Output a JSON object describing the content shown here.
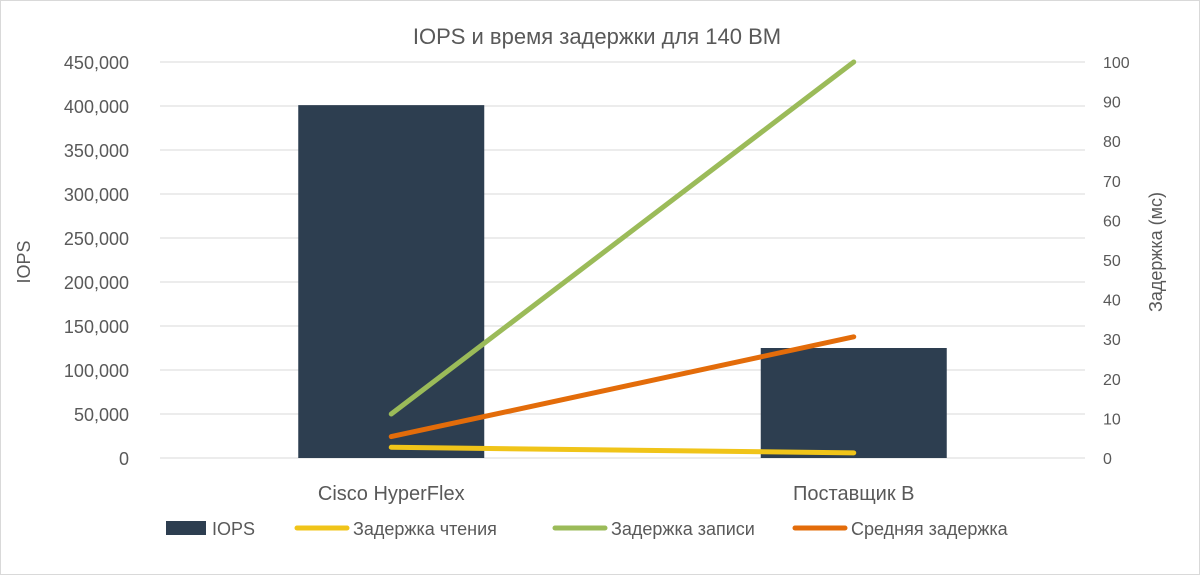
{
  "chart_data": {
    "type": "bar",
    "title": "IOPS и время задержки для 140 ВМ",
    "categories": [
      "Cisco HyperFlex",
      "Поставщик B"
    ],
    "y_left": {
      "label": "IOPS",
      "range": [
        0,
        450000
      ],
      "ticks": [
        "0",
        "50,000",
        "100,000",
        "150,000",
        "200,000",
        "250,000",
        "300,000",
        "350,000",
        "400,000",
        "450,000"
      ]
    },
    "y_right": {
      "label": "Задержка (мс)",
      "range": [
        0,
        100
      ],
      "ticks": [
        "0",
        "10",
        "20",
        "30",
        "40",
        "50",
        "60",
        "70",
        "80",
        "90",
        "100"
      ]
    },
    "grid": true,
    "legend_position": "bottom",
    "series": [
      {
        "name": "IOPS",
        "type": "bar",
        "axis": "left",
        "color": "#2d3e50",
        "values": [
          401000,
          125000
        ]
      },
      {
        "name": "Задержка чтения",
        "type": "line",
        "axis": "right",
        "color": "#f0c419",
        "values": [
          2.7,
          1.3
        ]
      },
      {
        "name": "Задержка записи",
        "type": "line",
        "axis": "right",
        "color": "#9bbb59",
        "values": [
          11.1,
          100
        ]
      },
      {
        "name": "Средняя задержка",
        "type": "line",
        "axis": "right",
        "color": "#e36c0a",
        "values": [
          5.4,
          30.6
        ]
      }
    ]
  }
}
